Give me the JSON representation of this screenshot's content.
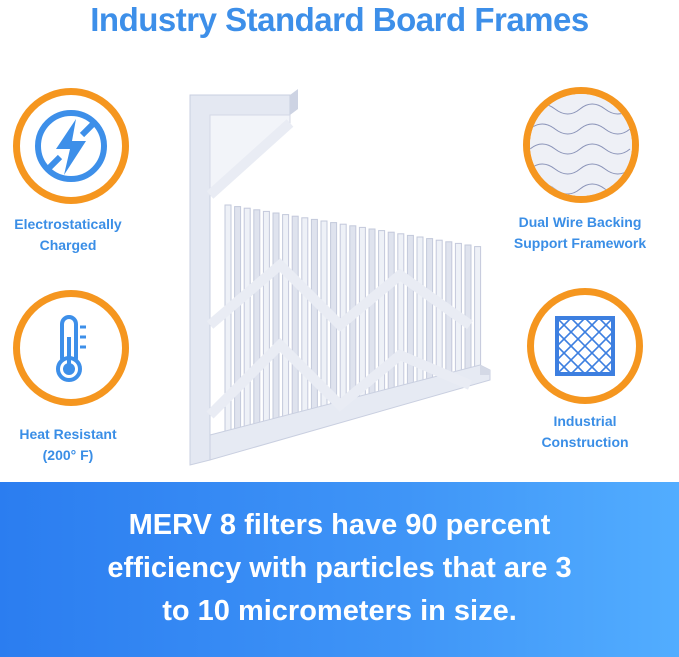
{
  "title": "Industry Standard Board Frames",
  "features": [
    {
      "icon": "no-static-icon",
      "label_lines": [
        "Electrostatically",
        "Charged"
      ]
    },
    {
      "icon": "thermometer-icon",
      "label_lines": [
        "Heat Resistant",
        "(200° F)"
      ]
    },
    {
      "icon": "wire-mesh-icon",
      "label_lines": [
        "Dual Wire Backing",
        "Support Framework"
      ]
    },
    {
      "icon": "grid-frame-icon",
      "label_lines": [
        "Industrial",
        "Construction"
      ]
    }
  ],
  "banner": {
    "lines": [
      "MERV 8 filters have 90 percent",
      "efficiency with particles that are 3",
      "to 10 micrometers in size."
    ]
  },
  "colors": {
    "accent_blue": "#3d8fe9",
    "ring_orange": "#f5961f",
    "banner_blue": "#2b7df0"
  }
}
